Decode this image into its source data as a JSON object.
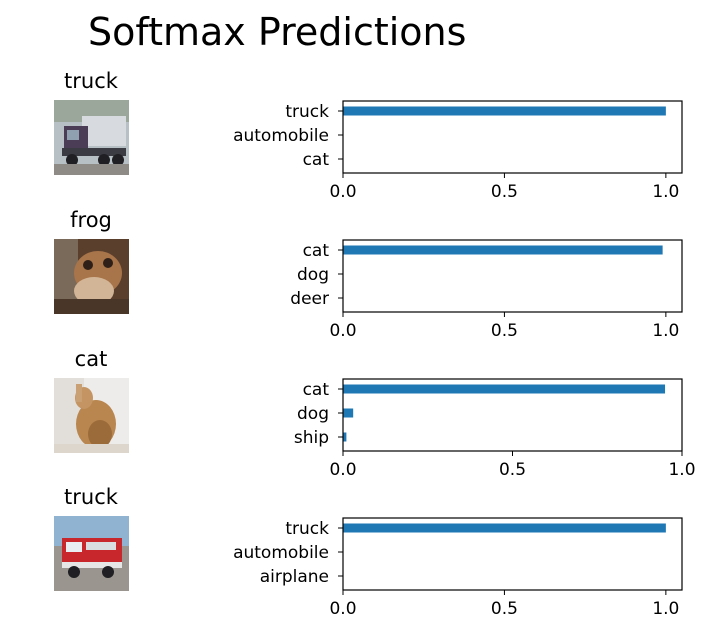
{
  "figure": {
    "title": "Softmax Predictions"
  },
  "chart_data": [
    {
      "type": "bar",
      "orientation": "horizontal",
      "image_label": "truck",
      "categories": [
        "truck",
        "automobile",
        "cat"
      ],
      "values": [
        1.0,
        0.0,
        0.0
      ],
      "xlim": [
        0,
        1.05
      ],
      "xticks": [
        "0.0",
        "0.5",
        "1.0"
      ],
      "color": "#1f77b4"
    },
    {
      "type": "bar",
      "orientation": "horizontal",
      "image_label": "frog",
      "categories": [
        "cat",
        "dog",
        "deer"
      ],
      "values": [
        0.99,
        0.0,
        0.0
      ],
      "xlim": [
        0,
        1.05
      ],
      "xticks": [
        "0.0",
        "0.5",
        "1.0"
      ],
      "color": "#1f77b4"
    },
    {
      "type": "bar",
      "orientation": "horizontal",
      "image_label": "cat",
      "categories": [
        "cat",
        "dog",
        "ship"
      ],
      "values": [
        0.95,
        0.03,
        0.01
      ],
      "xlim": [
        0,
        1.0
      ],
      "xticks": [
        "0.0",
        "0.5",
        "1.0"
      ],
      "color": "#1f77b4"
    },
    {
      "type": "bar",
      "orientation": "horizontal",
      "image_label": "truck",
      "categories": [
        "truck",
        "automobile",
        "airplane"
      ],
      "values": [
        1.0,
        0.0,
        0.0
      ],
      "xlim": [
        0,
        1.05
      ],
      "xticks": [
        "0.0",
        "0.5",
        "1.0"
      ],
      "color": "#1f77b4"
    }
  ]
}
